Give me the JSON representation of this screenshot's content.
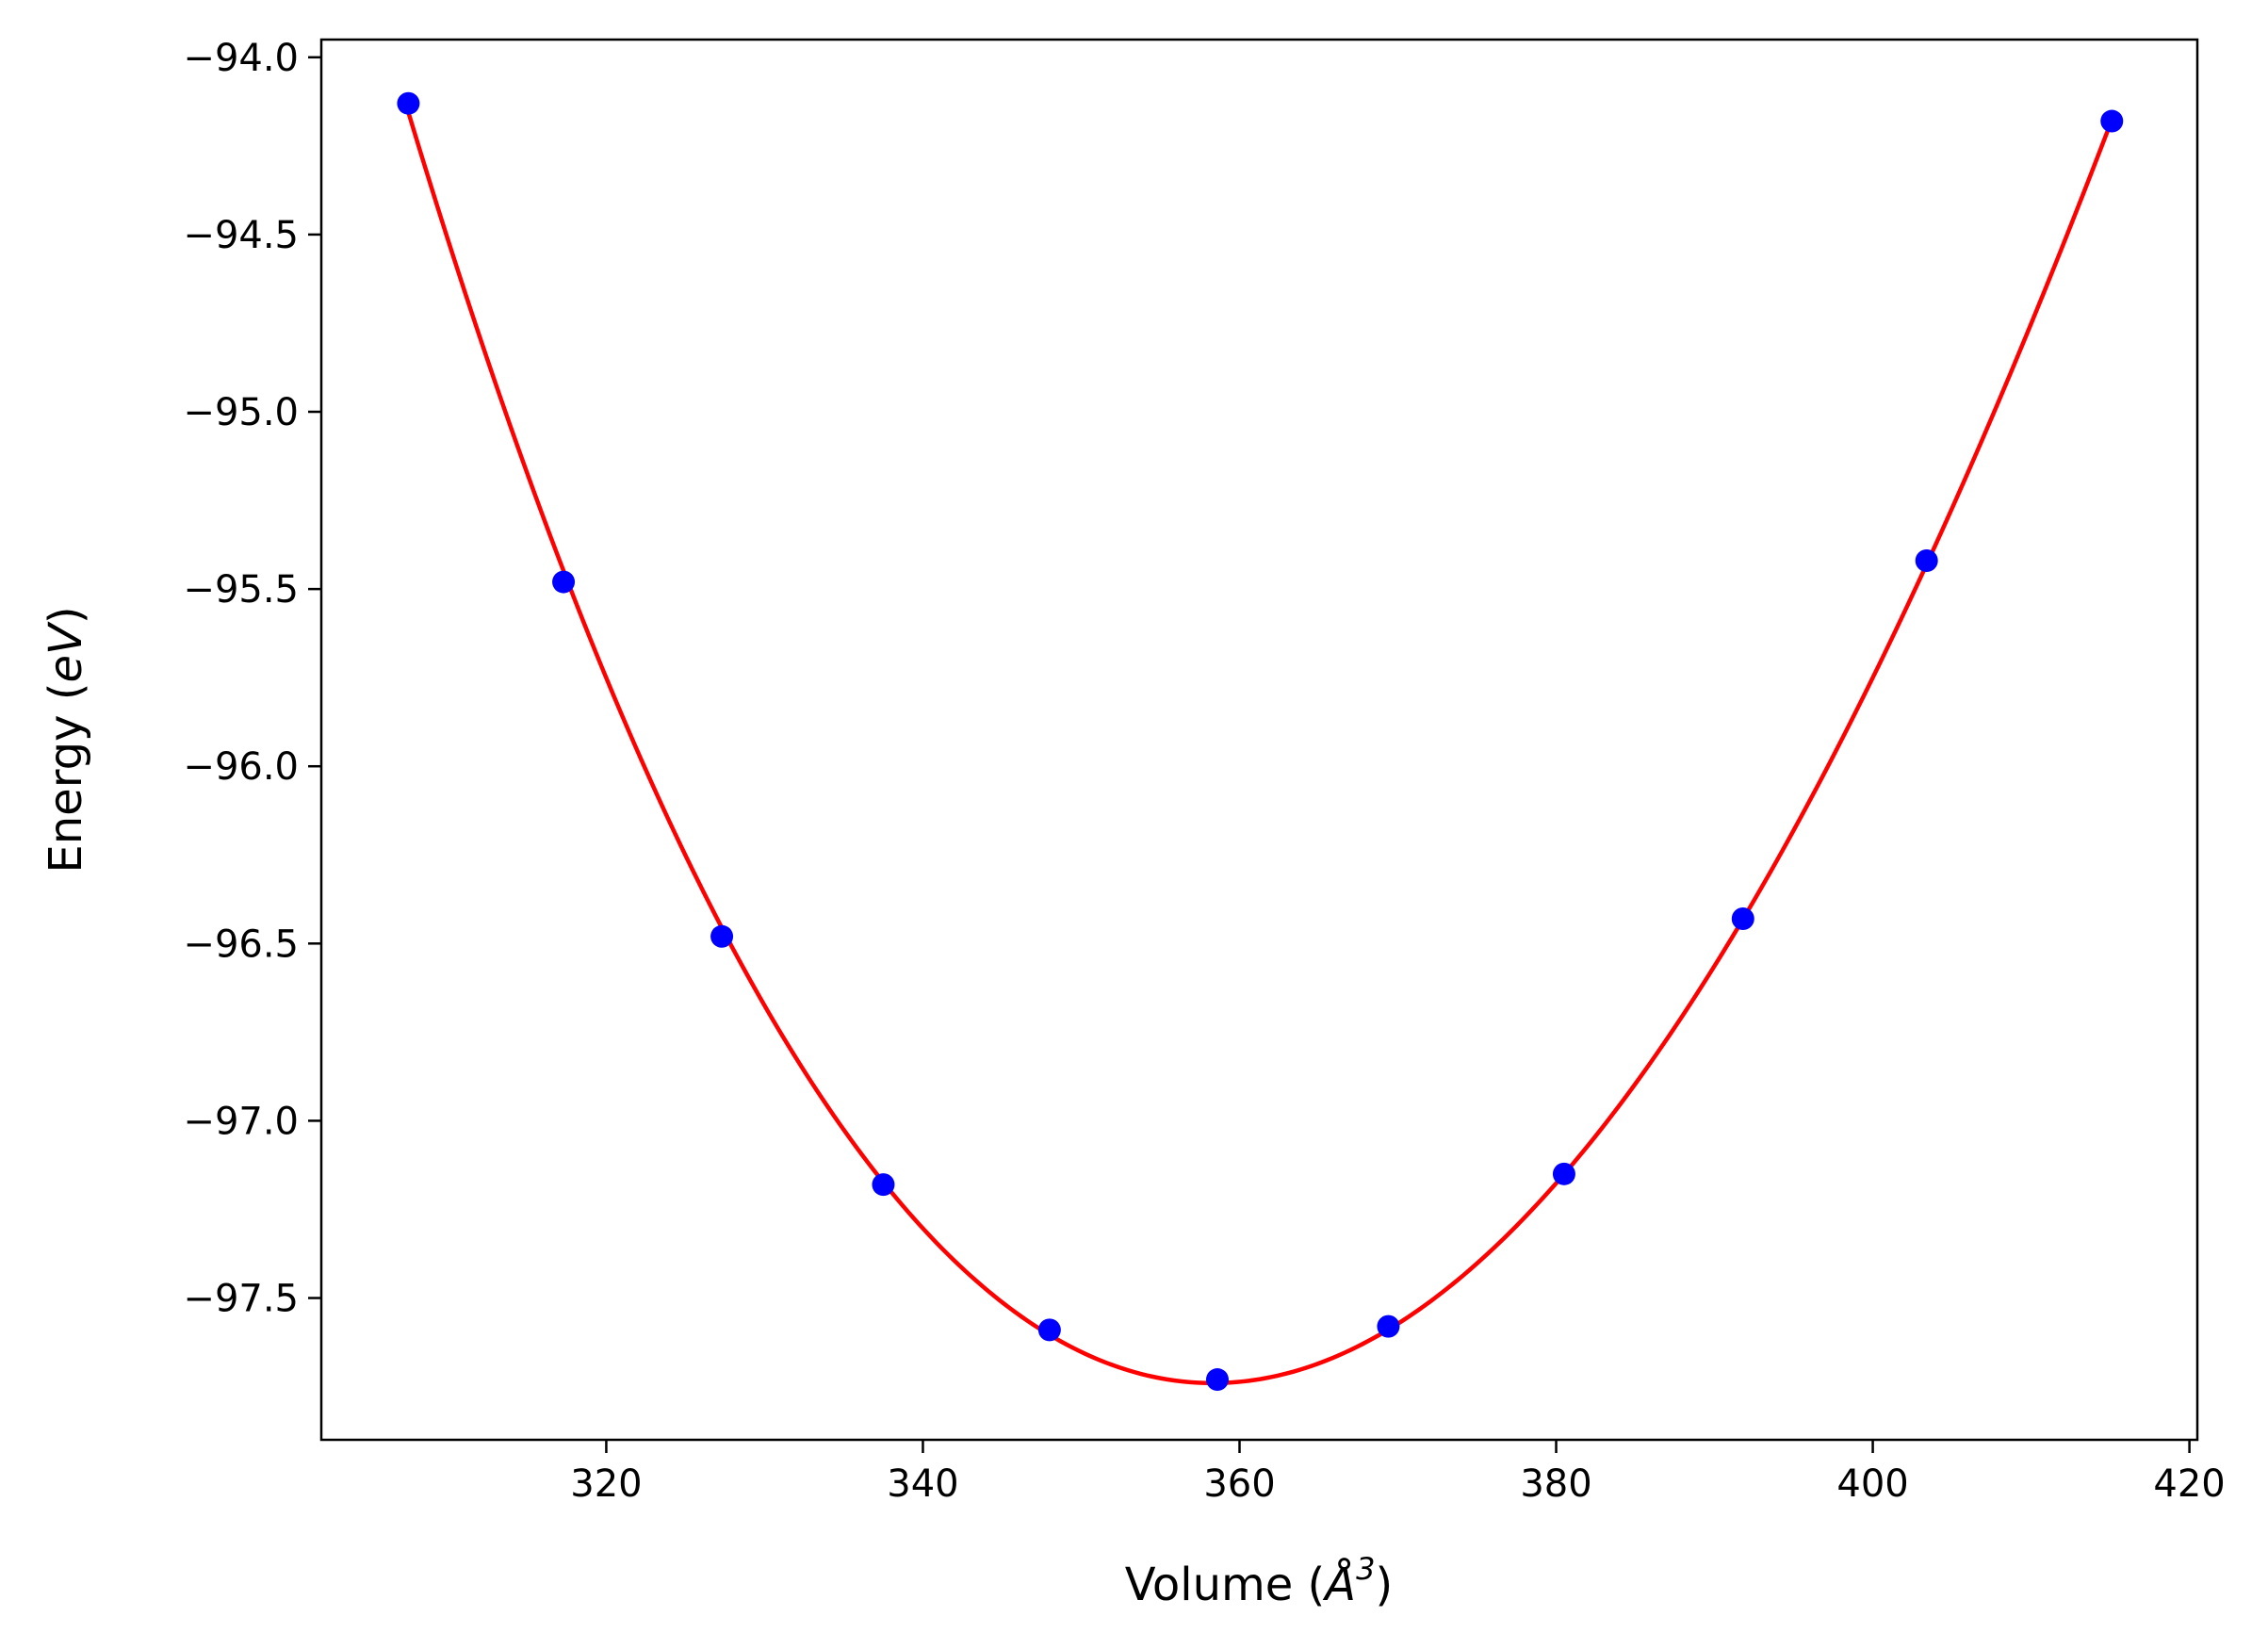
{
  "chart_data": {
    "type": "scatter",
    "xlabel_main": "Volume (",
    "xlabel_symbol": "Å",
    "xlabel_sup": "3",
    "xlabel_close": ")",
    "ylabel_main": "Energy (",
    "ylabel_unit": "eV",
    "ylabel_close": ")",
    "xlim": [
      302.0,
      420.5
    ],
    "ylim": [
      -97.9,
      -93.95
    ],
    "grid": false,
    "xticks": [
      320,
      340,
      360,
      380,
      400,
      420
    ],
    "xtick_labels": [
      "320",
      "340",
      "360",
      "380",
      "400",
      "420"
    ],
    "yticks": [
      -94.0,
      -94.5,
      -95.0,
      -95.5,
      -96.0,
      -96.5,
      -97.0,
      -97.5
    ],
    "ytick_labels": [
      "−94.0",
      "−94.5",
      "−95.0",
      "−95.5",
      "−96.0",
      "−96.5",
      "−97.0",
      "−97.5"
    ],
    "points": {
      "color": "#0000ff",
      "x": [
        307.5,
        317.3,
        327.3,
        337.5,
        348.0,
        358.6,
        369.4,
        380.5,
        391.8,
        403.4,
        415.1
      ],
      "y": [
        -94.13,
        -95.48,
        -96.48,
        -97.18,
        -97.59,
        -97.73,
        -97.58,
        -97.15,
        -96.43,
        -95.42,
        -94.18
      ]
    },
    "fit": {
      "color": "#ff0000",
      "v0": 358.3,
      "e0": -97.74,
      "x_range": [
        307.5,
        415.1
      ]
    }
  }
}
